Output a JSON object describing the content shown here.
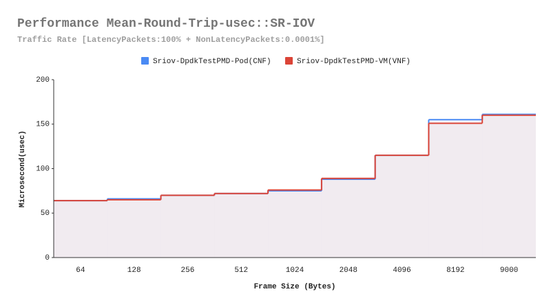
{
  "chart_data": {
    "type": "step-area",
    "title": "Performance Mean-Round-Trip-usec::SR-IOV",
    "subtitle": "Traffic Rate [LatencyPackets:100% + NonLatencyPackets:0.0001%]",
    "x_label": "Frame Size (Bytes)",
    "y_label": "Microsecond(usec)",
    "categories": [
      "64",
      "128",
      "256",
      "512",
      "1024",
      "2048",
      "4096",
      "8192",
      "9000"
    ],
    "series": [
      {
        "name": "Sriov-DpdkTestPMD-Pod(CNF)",
        "color": "#4a8af4",
        "values": [
          64,
          66,
          70,
          72,
          75,
          88,
          115,
          155,
          161
        ]
      },
      {
        "name": "Sriov-DpdkTestPMD-VM(VNF)",
        "color": "#db4437",
        "values": [
          64,
          65,
          70,
          72,
          76,
          89,
          115,
          151,
          160
        ]
      }
    ],
    "ylim": [
      0,
      200
    ],
    "yticks": [
      0,
      50,
      100,
      150,
      200
    ],
    "grid": false
  }
}
